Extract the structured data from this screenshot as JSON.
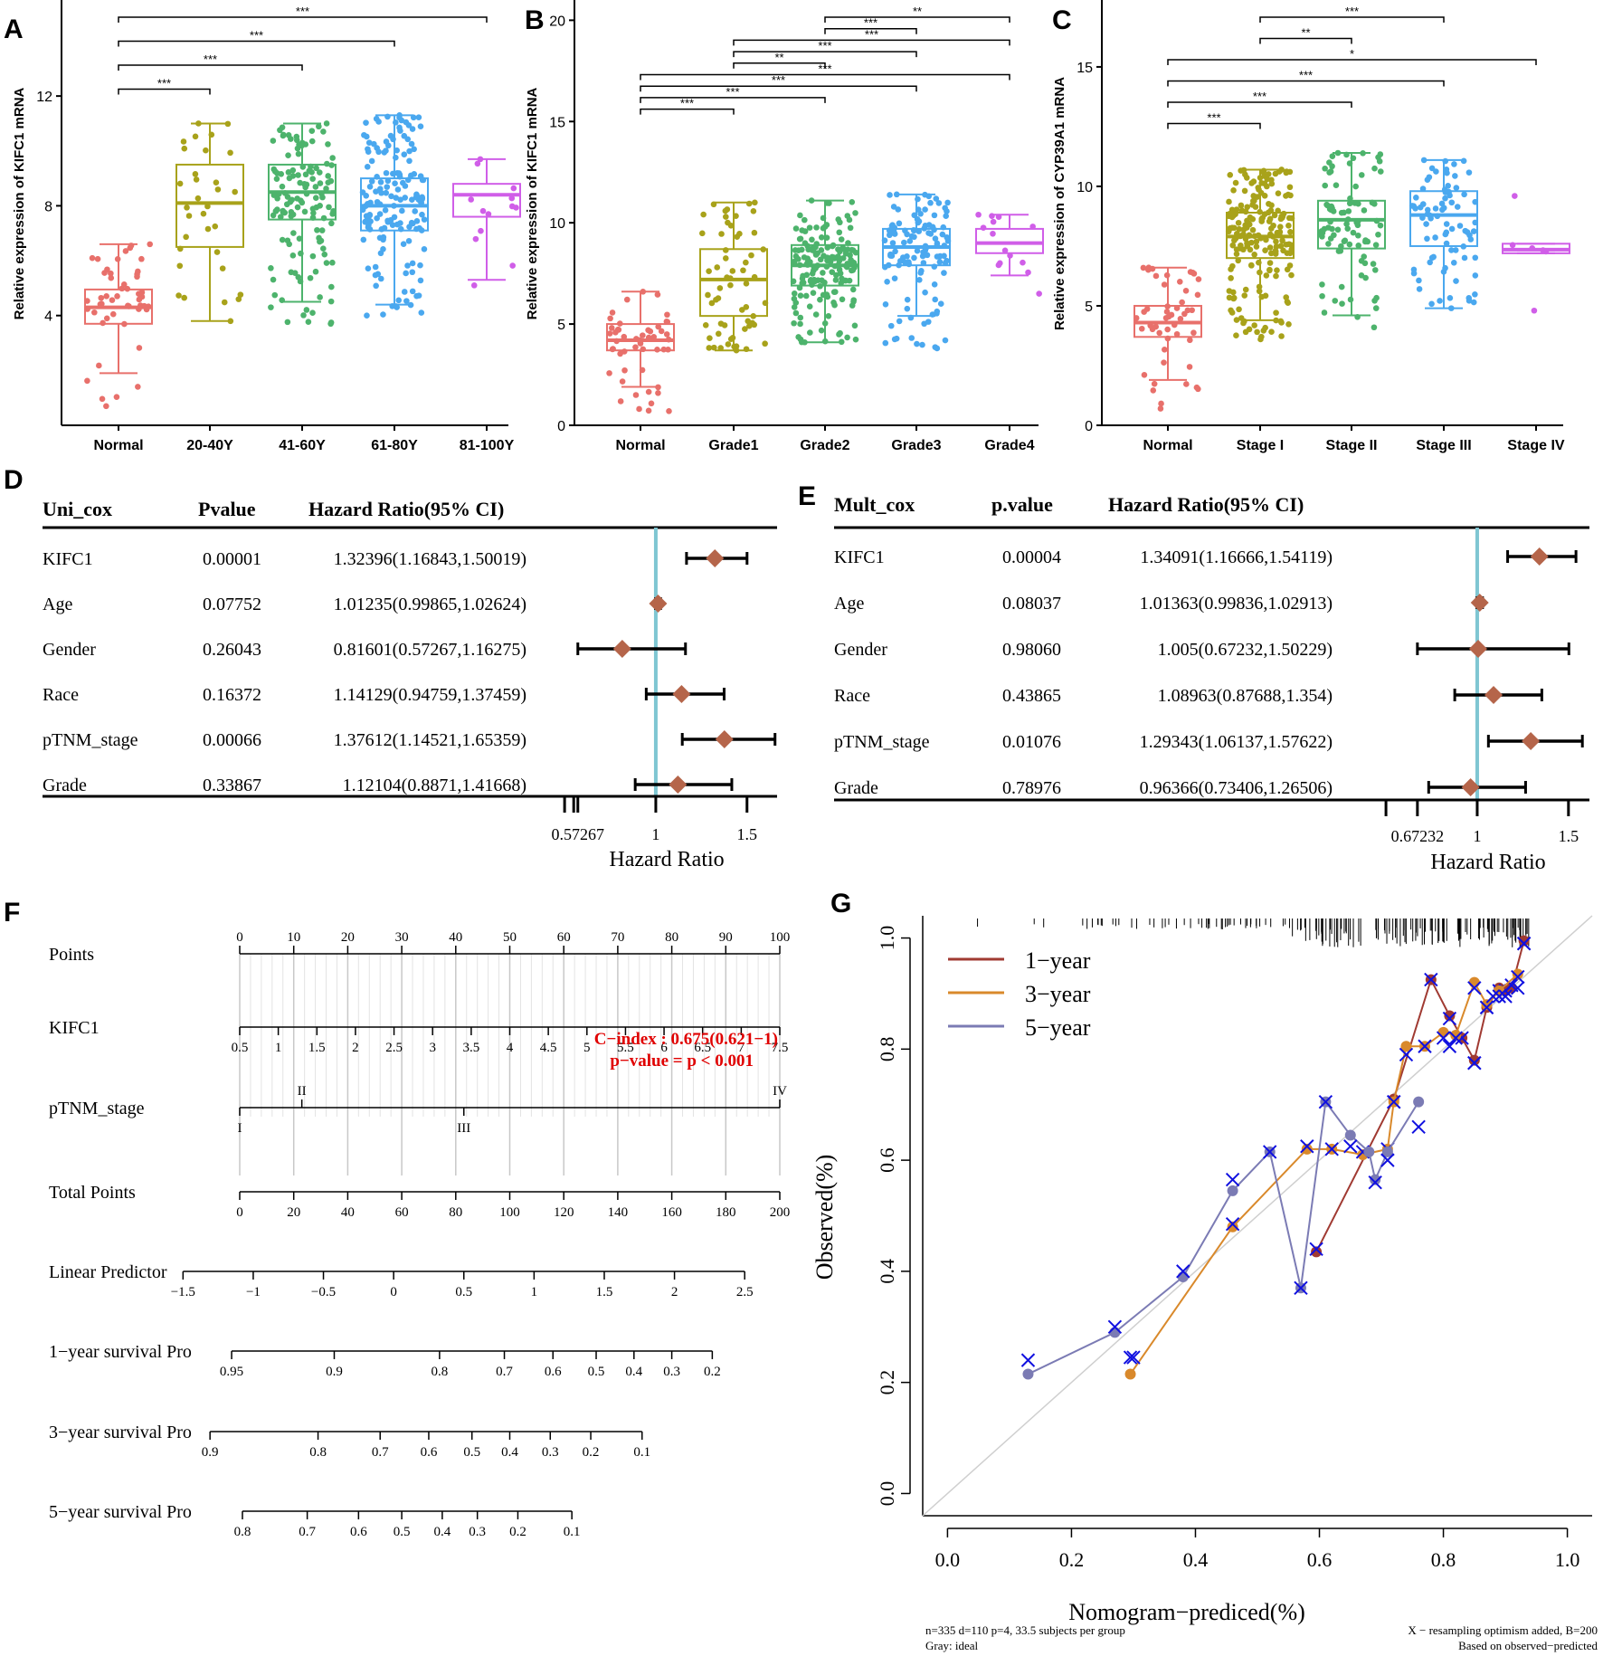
{
  "panel_labels": {
    "A": "A",
    "B": "B",
    "C": "C",
    "D": "D",
    "E": "E",
    "F": "F",
    "G": "G"
  },
  "colors": {
    "normal": "#e8706b",
    "g2": "#a8a21a",
    "g3": "#4db36c",
    "g4": "#4aa8ef",
    "g5": "#d05ee8",
    "diamond": "#b5654a",
    "refline": "#7fc6d2",
    "red": "#e00000",
    "y1": "#a03a32",
    "y3": "#d9892b",
    "y5": "#7b7bb4",
    "cross": "#1010e0",
    "ideal": "#cfcfcf"
  },
  "chart_data": [
    {
      "id": "A",
      "type": "box",
      "ylabel": "Relative expression of KIFC1 mRNA",
      "ylim": [
        0,
        15.5
      ],
      "yticks": [
        4,
        8,
        12
      ],
      "categories": [
        "Normal",
        "20-40Y",
        "41-60Y",
        "61-80Y",
        "81-100Y"
      ],
      "boxes": [
        {
          "q1": 3.7,
          "median": 4.3,
          "q3": 4.95,
          "wlo": 1.9,
          "whi": 6.6,
          "ymin": 0.7,
          "ymax": 6.6,
          "n": 50
        },
        {
          "q1": 6.5,
          "median": 8.1,
          "q3": 9.5,
          "wlo": 3.8,
          "whi": 11.0,
          "ymin": 3.8,
          "ymax": 11.0,
          "n": 32
        },
        {
          "q1": 7.5,
          "median": 8.5,
          "q3": 9.5,
          "wlo": 4.5,
          "whi": 11.0,
          "ymin": 3.7,
          "ymax": 11.0,
          "n": 130
        },
        {
          "q1": 7.1,
          "median": 8.0,
          "q3": 9.0,
          "wlo": 4.4,
          "whi": 11.3,
          "ymin": 4.0,
          "ymax": 11.3,
          "n": 160
        },
        {
          "q1": 7.6,
          "median": 8.4,
          "q3": 8.8,
          "wlo": 5.3,
          "whi": 9.7,
          "ymin": 5.1,
          "ymax": 9.7,
          "n": 13
        }
      ],
      "brackets": [
        {
          "from": 0,
          "to": 4,
          "label": "***"
        },
        {
          "from": 0,
          "to": 3,
          "label": "***"
        },
        {
          "from": 0,
          "to": 2,
          "label": "***"
        },
        {
          "from": 0,
          "to": 1,
          "label": "***"
        }
      ]
    },
    {
      "id": "B",
      "type": "box",
      "ylabel": "Relative expression of KIFC1 mRNA",
      "ylim": [
        0,
        21
      ],
      "yticks": [
        0,
        5,
        10,
        15,
        20
      ],
      "categories": [
        "Normal",
        "Grade1",
        "Grade2",
        "Grade3",
        "Grade4"
      ],
      "boxes": [
        {
          "q1": 3.7,
          "median": 4.2,
          "q3": 5.0,
          "wlo": 1.9,
          "whi": 6.6,
          "ymin": 0.7,
          "ymax": 6.6,
          "n": 50
        },
        {
          "q1": 5.4,
          "median": 7.2,
          "q3": 8.7,
          "wlo": 3.7,
          "whi": 11.0,
          "ymin": 3.7,
          "ymax": 11.0,
          "n": 60
        },
        {
          "q1": 6.9,
          "median": 7.9,
          "q3": 8.9,
          "wlo": 4.1,
          "whi": 11.1,
          "ymin": 4.1,
          "ymax": 11.1,
          "n": 170
        },
        {
          "q1": 7.9,
          "median": 8.8,
          "q3": 9.7,
          "wlo": 5.4,
          "whi": 11.4,
          "ymin": 3.8,
          "ymax": 11.4,
          "n": 120
        },
        {
          "q1": 8.5,
          "median": 9.0,
          "q3": 9.7,
          "wlo": 7.4,
          "whi": 10.4,
          "ymin": 6.5,
          "ymax": 10.4,
          "n": 14
        }
      ],
      "brackets": [
        {
          "from": 2,
          "to": 4,
          "label": "**"
        },
        {
          "from": 2,
          "to": 3,
          "label": "***"
        },
        {
          "from": 1,
          "to": 4,
          "label": "***"
        },
        {
          "from": 1,
          "to": 3,
          "label": "***"
        },
        {
          "from": 1,
          "to": 2,
          "label": "**"
        },
        {
          "from": 0,
          "to": 4,
          "label": "***"
        },
        {
          "from": 0,
          "to": 3,
          "label": "***"
        },
        {
          "from": 0,
          "to": 2,
          "label": "***"
        },
        {
          "from": 0,
          "to": 1,
          "label": "***"
        }
      ]
    },
    {
      "id": "C",
      "type": "box",
      "ylabel": "Relative expression of CYP39A1 mRNA",
      "ylim": [
        0,
        17.8
      ],
      "yticks": [
        0,
        5,
        10,
        15
      ],
      "categories": [
        "Normal",
        "Stage I",
        "Stage II",
        "Stage III",
        "Stage IV"
      ],
      "boxes": [
        {
          "q1": 3.7,
          "median": 4.3,
          "q3": 5.0,
          "wlo": 1.9,
          "whi": 6.6,
          "ymin": 0.7,
          "ymax": 6.6,
          "n": 50
        },
        {
          "q1": 7.0,
          "median": 7.9,
          "q3": 8.9,
          "wlo": 4.4,
          "whi": 10.7,
          "ymin": 3.6,
          "ymax": 10.7,
          "n": 200
        },
        {
          "q1": 7.4,
          "median": 8.6,
          "q3": 9.4,
          "wlo": 4.6,
          "whi": 11.4,
          "ymin": 4.1,
          "ymax": 11.4,
          "n": 90
        },
        {
          "q1": 7.5,
          "median": 8.8,
          "q3": 9.8,
          "wlo": 4.9,
          "whi": 11.1,
          "ymin": 4.9,
          "ymax": 11.1,
          "n": 80
        },
        {
          "q1": 7.2,
          "median": 7.35,
          "q3": 7.6,
          "wlo": 7.2,
          "whi": 7.6,
          "ymin": 4.8,
          "ymax": 9.6,
          "n": 6
        }
      ],
      "brackets": [
        {
          "from": 1,
          "to": 3,
          "label": "***"
        },
        {
          "from": 1,
          "to": 2,
          "label": "**"
        },
        {
          "from": 0,
          "to": 4,
          "label": "*"
        },
        {
          "from": 0,
          "to": 3,
          "label": "***"
        },
        {
          "from": 0,
          "to": 2,
          "label": "***"
        },
        {
          "from": 0,
          "to": 1,
          "label": "***"
        }
      ]
    },
    {
      "id": "D",
      "type": "forest",
      "headers": [
        "Uni_cox",
        "Pvalue",
        "Hazard Ratio(95% CI)"
      ],
      "xlabel": "Hazard Ratio",
      "xticks": [
        "0.57267",
        "1",
        "1.5"
      ],
      "xtick_values": [
        0.57267,
        1,
        1.5
      ],
      "extra_ticks": [
        0.5,
        0.55
      ],
      "xlim": [
        0.43,
        1.65
      ],
      "ref": 1,
      "rows": [
        {
          "name": "KIFC1",
          "p": "0.00001",
          "hr_text": "1.32396(1.16843,1.50019)",
          "hr": 1.32396,
          "lo": 1.16843,
          "hi": 1.50019
        },
        {
          "name": "Age",
          "p": "0.07752",
          "hr_text": "1.01235(0.99865,1.02624)",
          "hr": 1.01235,
          "lo": 0.99865,
          "hi": 1.02624
        },
        {
          "name": "Gender",
          "p": "0.26043",
          "hr_text": "0.81601(0.57267,1.16275)",
          "hr": 0.81601,
          "lo": 0.57267,
          "hi": 1.16275
        },
        {
          "name": "Race",
          "p": "0.16372",
          "hr_text": "1.14129(0.94759,1.37459)",
          "hr": 1.14129,
          "lo": 0.94759,
          "hi": 1.37459
        },
        {
          "name": "pTNM_stage",
          "p": "0.00066",
          "hr_text": "1.37612(1.14521,1.65359)",
          "hr": 1.37612,
          "lo": 1.14521,
          "hi": 1.65359
        },
        {
          "name": "Grade",
          "p": "0.33867",
          "hr_text": "1.12104(0.8871,1.41668)",
          "hr": 1.12104,
          "lo": 0.8871,
          "hi": 1.41668
        }
      ]
    },
    {
      "id": "E",
      "type": "forest",
      "headers": [
        "Mult_cox",
        "p.value",
        "Hazard Ratio(95% CI)"
      ],
      "xlabel": "Hazard Ratio",
      "xticks": [
        "0.67232",
        "1",
        "1.5"
      ],
      "xtick_values": [
        0.67232,
        1,
        1.5
      ],
      "extra_ticks": [
        0.5
      ],
      "xlim": [
        0.45,
        1.6
      ],
      "ref": 1,
      "rows": [
        {
          "name": "KIFC1",
          "p": "0.00004",
          "hr_text": "1.34091(1.16666,1.54119)",
          "hr": 1.34091,
          "lo": 1.16666,
          "hi": 1.54119
        },
        {
          "name": "Age",
          "p": "0.08037",
          "hr_text": "1.01363(0.99836,1.02913)",
          "hr": 1.01363,
          "lo": 0.99836,
          "hi": 1.02913
        },
        {
          "name": "Gender",
          "p": "0.98060",
          "hr_text": "1.005(0.67232,1.50229)",
          "hr": 1.005,
          "lo": 0.67232,
          "hi": 1.50229
        },
        {
          "name": "Race",
          "p": "0.43865",
          "hr_text": "1.08963(0.87688,1.354)",
          "hr": 1.08963,
          "lo": 0.87688,
          "hi": 1.354
        },
        {
          "name": "pTNM_stage",
          "p": "0.01076",
          "hr_text": "1.29343(1.06137,1.57622)",
          "hr": 1.29343,
          "lo": 1.06137,
          "hi": 1.57622
        },
        {
          "name": "Grade",
          "p": "0.78976",
          "hr_text": "0.96366(0.73406,1.26506)",
          "hr": 0.96366,
          "lo": 0.73406,
          "hi": 1.26506
        }
      ]
    },
    {
      "id": "F",
      "type": "nomogram",
      "annotation_cindex": "C−index : 0.675(0.621−1)",
      "annotation_pvalue": "p−value = p < 0.001",
      "scales": [
        {
          "label": "Points",
          "ticks": [
            "0",
            "10",
            "20",
            "30",
            "40",
            "50",
            "60",
            "70",
            "80",
            "90",
            "100"
          ],
          "pos": [
            0,
            10,
            20,
            30,
            40,
            50,
            60,
            70,
            80,
            90,
            100
          ],
          "range": [
            0,
            100
          ],
          "above": true
        },
        {
          "label": "KIFC1",
          "ticks": [
            "0.5",
            "1",
            "1.5",
            "2",
            "2.5",
            "3",
            "3.5",
            "4",
            "4.5",
            "5",
            "5.5",
            "6",
            "6.5",
            "7",
            "7.5"
          ],
          "pos": [
            0,
            7.14,
            14.29,
            21.43,
            28.57,
            35.71,
            42.86,
            50,
            57.14,
            64.29,
            71.43,
            78.57,
            85.71,
            92.86,
            100
          ],
          "range": [
            0,
            100
          ],
          "above": false
        },
        {
          "label": "pTNM_stage",
          "ticks": [
            "I",
            "II",
            "III",
            "IV"
          ],
          "pos": [
            0,
            11.5,
            41.5,
            100
          ],
          "alt": [
            false,
            true,
            false,
            true
          ],
          "range": [
            0,
            100
          ],
          "above": false
        },
        {
          "label": "Total Points",
          "ticks": [
            "0",
            "20",
            "40",
            "60",
            "80",
            "100",
            "120",
            "140",
            "160",
            "180",
            "200"
          ],
          "pos": [
            0,
            10,
            20,
            30,
            40,
            50,
            60,
            70,
            80,
            90,
            100
          ],
          "range": [
            0,
            100
          ],
          "above": false
        },
        {
          "label": "Linear Predictor",
          "ticks": [
            "−1.5",
            "−1",
            "−0.5",
            "0",
            "0.5",
            "1",
            "1.5",
            "2",
            "2.5"
          ],
          "pos": [
            -10.5,
            2.5,
            15.5,
            28.5,
            41.5,
            54.5,
            67.5,
            80.5,
            93.5
          ],
          "range": [
            -10.5,
            93.5
          ],
          "above": false
        },
        {
          "label": "1−year survival Pro",
          "ticks": [
            "0.95",
            "0.9",
            "0.8",
            "0.7",
            "0.6",
            "0.5",
            "0.4",
            "0.3",
            "0.2"
          ],
          "pos": [
            -1.5,
            17.5,
            37,
            49,
            58,
            66,
            73,
            80,
            87.5
          ],
          "range": [
            -1.5,
            87.5
          ],
          "above": false
        },
        {
          "label": "3−year survival Pro",
          "ticks": [
            "0.9",
            "0.8",
            "0.7",
            "0.6",
            "0.5",
            "0.4",
            "0.3",
            "0.2",
            "0.1"
          ],
          "pos": [
            -5.5,
            14.5,
            26,
            35,
            43,
            50,
            57.5,
            65,
            74.5
          ],
          "range": [
            -5.5,
            74.5
          ],
          "above": false
        },
        {
          "label": "5−year survival Pro",
          "ticks": [
            "0.8",
            "0.7",
            "0.6",
            "0.5",
            "0.4",
            "0.3",
            "0.2",
            "0.1"
          ],
          "pos": [
            0.5,
            12.5,
            22,
            30,
            37.5,
            44,
            51.5,
            61.5
          ],
          "range": [
            0.5,
            61.5
          ],
          "above": false
        }
      ]
    },
    {
      "id": "G",
      "type": "calibration",
      "xlabel": "Nomogram−prediced(%)",
      "ylabel": "Observed(%)",
      "xlim": [
        -0.04,
        1.04
      ],
      "ylim": [
        -0.04,
        1.04
      ],
      "xticks": [
        "0.0",
        "0.2",
        "0.4",
        "0.6",
        "0.8",
        "1.0"
      ],
      "yticks": [
        "0.0",
        "0.2",
        "0.4",
        "0.6",
        "0.8",
        "1.0"
      ],
      "legend": [
        "1−year",
        "3−year",
        "5−year"
      ],
      "footnote_left": [
        "n=335 d=110 p=4, 33.5 subjects per group",
        "Gray: ideal"
      ],
      "footnote_right": [
        "X − resampling optimism added, B=200",
        "Based on observed−predicted"
      ],
      "series": [
        {
          "name": "1−year",
          "x": [
            0.595,
            0.72,
            0.78,
            0.81,
            0.83,
            0.85,
            0.87,
            0.89,
            0.9,
            0.91,
            0.93
          ],
          "y": [
            0.435,
            0.71,
            0.925,
            0.86,
            0.82,
            0.78,
            0.875,
            0.91,
            0.905,
            0.91,
            0.995
          ],
          "xc": [
            0.595,
            0.72,
            0.78,
            0.81,
            0.83,
            0.85,
            0.87,
            0.89,
            0.9,
            0.91,
            0.93
          ],
          "yc": [
            0.44,
            0.705,
            0.925,
            0.855,
            0.82,
            0.775,
            0.875,
            0.905,
            0.905,
            0.915,
            0.99
          ]
        },
        {
          "name": "3−year",
          "x": [
            0.295,
            0.46,
            0.58,
            0.62,
            0.67,
            0.71,
            0.72,
            0.74,
            0.77,
            0.8,
            0.82,
            0.85,
            0.87,
            0.89,
            0.92
          ],
          "y": [
            0.215,
            0.48,
            0.62,
            0.62,
            0.61,
            0.62,
            0.705,
            0.805,
            0.805,
            0.83,
            0.825,
            0.92,
            0.88,
            0.905,
            0.935
          ],
          "xc": [
            0.295,
            0.46,
            0.58,
            0.62,
            0.67,
            0.71,
            0.72,
            0.74,
            0.77,
            0.8,
            0.82,
            0.85,
            0.87,
            0.89,
            0.92
          ],
          "yc": [
            0.245,
            0.485,
            0.625,
            0.62,
            0.615,
            0.62,
            0.705,
            0.79,
            0.805,
            0.82,
            0.82,
            0.91,
            0.875,
            0.895,
            0.93
          ]
        },
        {
          "name": "5−year",
          "x": [
            0.13,
            0.27,
            0.38,
            0.46,
            0.52,
            0.57,
            0.61,
            0.65,
            0.68,
            0.69,
            0.71,
            0.76
          ],
          "y": [
            0.215,
            0.29,
            0.39,
            0.545,
            0.615,
            0.37,
            0.705,
            0.645,
            0.615,
            0.565,
            0.615,
            0.705
          ],
          "xc": [
            0.13,
            0.27,
            0.3,
            0.38,
            0.46,
            0.52,
            0.57,
            0.61,
            0.65,
            0.69,
            0.71,
            0.76,
            0.81,
            0.85,
            0.88,
            0.9,
            0.92,
            0.93
          ],
          "yc": [
            0.24,
            0.3,
            0.245,
            0.4,
            0.565,
            0.615,
            0.37,
            0.705,
            0.625,
            0.56,
            0.6,
            0.66,
            0.805,
            0.775,
            0.895,
            0.895,
            0.91,
            0.99
          ]
        }
      ]
    }
  ]
}
